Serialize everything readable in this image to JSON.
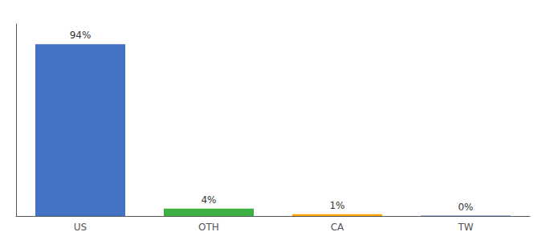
{
  "chart_data": {
    "type": "bar",
    "categories": [
      "US",
      "OTH",
      "CA",
      "TW"
    ],
    "values": [
      94,
      4,
      1,
      0.2
    ],
    "value_labels": [
      "94%",
      "4%",
      "1%",
      "0%"
    ],
    "colors": [
      "#4472C4",
      "#3CB043",
      "#FFA500",
      "#4472C4"
    ],
    "ylim": [
      0,
      105
    ],
    "grid": false,
    "data_labels": true,
    "tick_labels": "x"
  }
}
